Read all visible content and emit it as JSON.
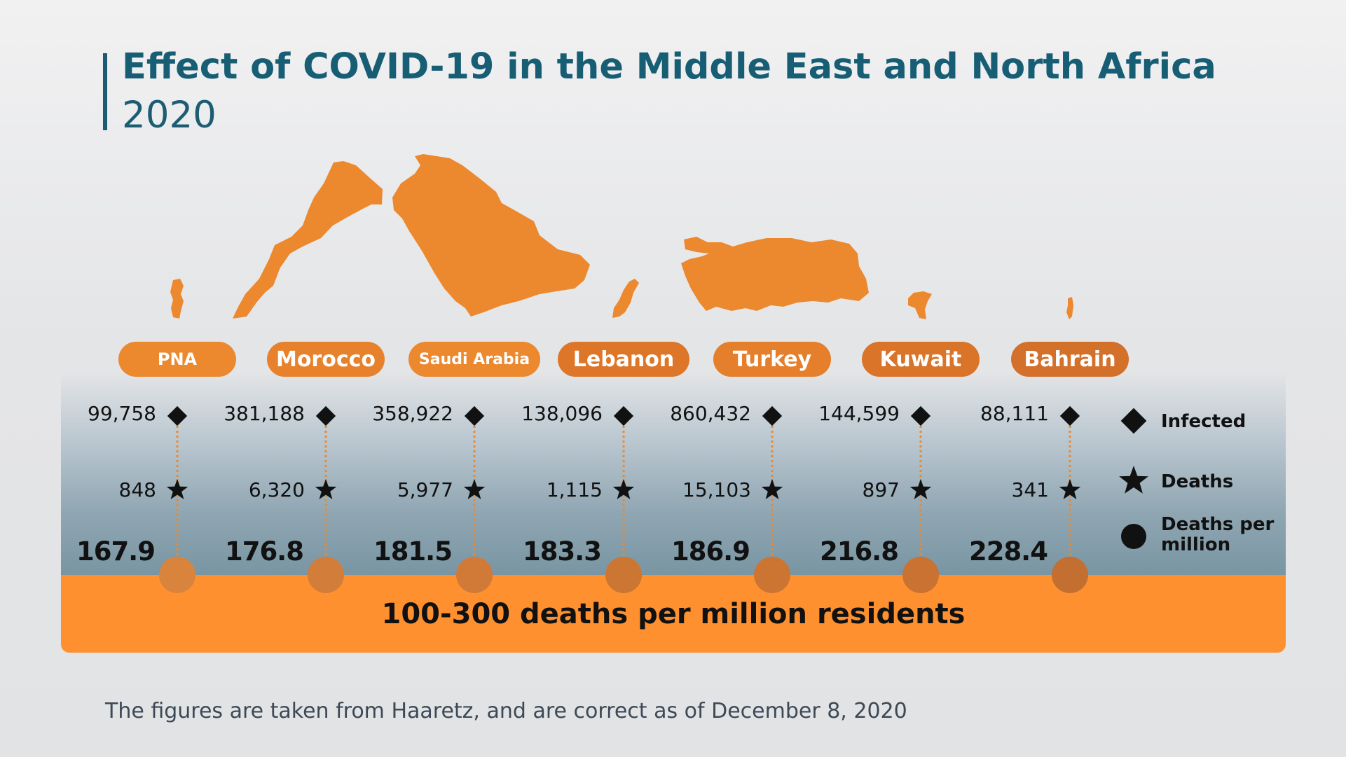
{
  "title": "Effect of COVID-19 in the Middle East and North Africa",
  "subtitle": "2020",
  "band_label": "100-300 deaths per million residents",
  "footnote": "The figures are taken from Haaretz, and are correct as of December 8, 2020",
  "legend": {
    "infected": "Infected",
    "deaths": "Deaths",
    "deaths_per_million": "Deaths per million"
  },
  "colors": {
    "title": "#175e74",
    "map": "#ec882d",
    "pill": "#e87b2a",
    "bar": "#ff902f",
    "marker": "#111111"
  },
  "chart_data": {
    "type": "table",
    "title": "Effect of COVID-19 in the Middle East and North Africa",
    "subtitle": "2020",
    "categories": [
      "PNA",
      "Morocco",
      "Saudi Arabia",
      "Lebanon",
      "Turkey",
      "Kuwait",
      "Bahrain"
    ],
    "series": [
      {
        "name": "Infected",
        "values": [
          99758,
          381188,
          358922,
          138096,
          860432,
          144599,
          88111
        ]
      },
      {
        "name": "Deaths",
        "values": [
          848,
          6320,
          5977,
          1115,
          15103,
          897,
          341
        ]
      },
      {
        "name": "Deaths per million",
        "values": [
          167.9,
          176.8,
          181.5,
          183.3,
          186.9,
          216.8,
          228.4
        ]
      }
    ],
    "labels": {
      "Infected": [
        "99,758",
        "381,188",
        "358,922",
        "138,096",
        "860,432",
        "144,599",
        "88,111"
      ],
      "Deaths": [
        "848",
        "6,320",
        "5,977",
        "1,115",
        "15,103",
        "897",
        "341"
      ],
      "Deaths per million": [
        "167.9",
        "176.8",
        "181.5",
        "183.3",
        "186.9",
        "216.8",
        "228.4"
      ]
    },
    "range_label": "100-300 deaths per million residents"
  }
}
